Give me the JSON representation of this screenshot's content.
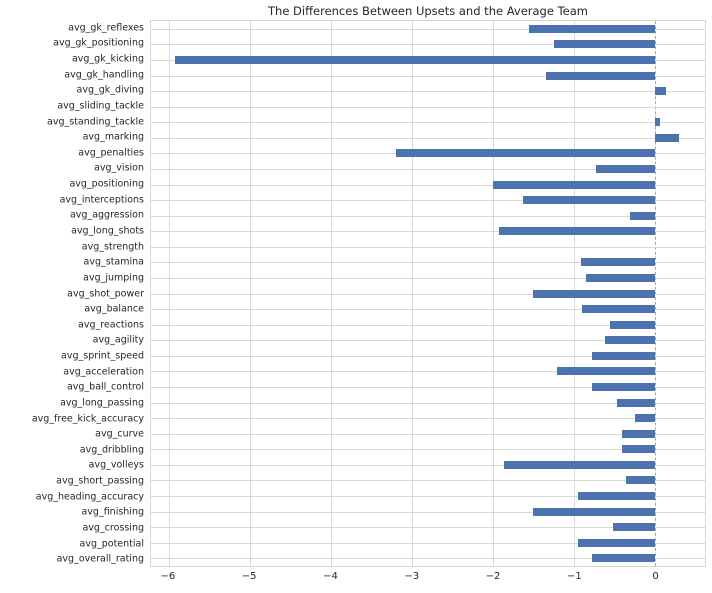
{
  "chart_data": {
    "type": "bar",
    "orientation": "horizontal",
    "title": "The Differences Between Upsets and the Average Team",
    "categories": [
      "avg_gk_reflexes",
      "avg_gk_positioning",
      "avg_gk_kicking",
      "avg_gk_handling",
      "avg_gk_diving",
      "avg_sliding_tackle",
      "avg_standing_tackle",
      "avg_marking",
      "avg_penalties",
      "avg_vision",
      "avg_positioning",
      "avg_interceptions",
      "avg_aggression",
      "avg_long_shots",
      "avg_strength",
      "avg_stamina",
      "avg_jumping",
      "avg_shot_power",
      "avg_balance",
      "avg_reactions",
      "avg_agility",
      "avg_sprint_speed",
      "avg_acceleration",
      "avg_ball_control",
      "avg_long_passing",
      "avg_free_kick_accuracy",
      "avg_curve",
      "avg_dribbling",
      "avg_volleys",
      "avg_short_passing",
      "avg_heading_accuracy",
      "avg_finishing",
      "avg_crossing",
      "avg_potential",
      "avg_overall_rating"
    ],
    "values": [
      -1.55,
      -1.24,
      -5.92,
      -1.34,
      0.14,
      0,
      0.06,
      0.3,
      -3.2,
      -0.72,
      -2.0,
      -1.63,
      -0.3,
      -1.92,
      0,
      -0.91,
      -0.85,
      -1.5,
      -0.9,
      -0.55,
      -0.62,
      -0.77,
      -1.21,
      -0.77,
      -0.47,
      -0.25,
      -0.41,
      -0.4,
      -1.86,
      -0.35,
      -0.95,
      -1.5,
      -0.52,
      -0.95,
      -0.78
    ],
    "xlabel": "",
    "ylabel": "",
    "xlim": [
      -6.22,
      0.62
    ],
    "xticks": [
      -6,
      -5,
      -4,
      -3,
      -2,
      -1,
      0
    ],
    "xtick_labels": [
      "−6",
      "−5",
      "−4",
      "−3",
      "−2",
      "−1",
      "0"
    ],
    "grid": true,
    "legend": false,
    "bar_color": "#4C72B0",
    "grid_color": "#D9D9D9",
    "zero_line_color": "#A8A8A8",
    "zero_line_style": "dashed",
    "background_color": "#FFFFFF",
    "text_color": "#262626"
  }
}
